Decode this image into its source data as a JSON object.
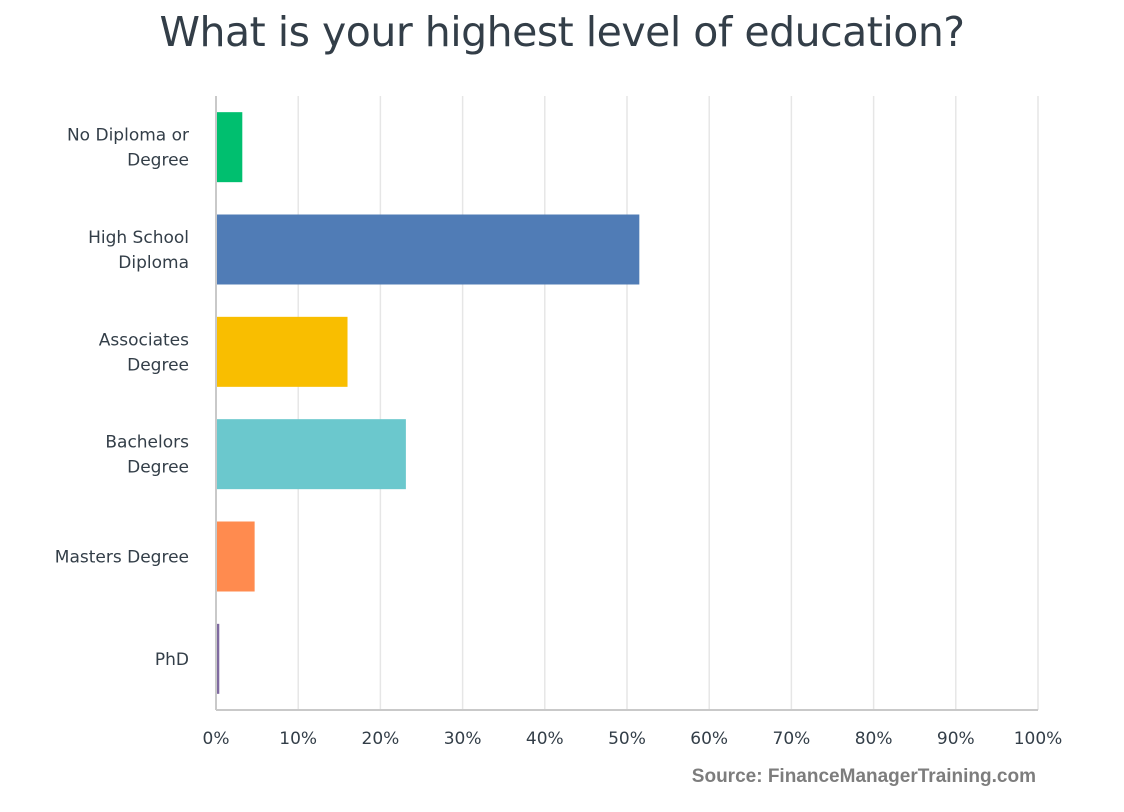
{
  "chart_data": {
    "type": "bar",
    "orientation": "horizontal",
    "title": "What is your highest level of education?",
    "categories": [
      [
        "No Diploma or",
        "Degree"
      ],
      [
        "High School",
        "Diploma"
      ],
      [
        "Associates",
        "Degree"
      ],
      [
        "Bachelors",
        "Degree"
      ],
      [
        "Masters Degree"
      ],
      [
        "PhD"
      ]
    ],
    "values": [
      3.2,
      51.5,
      16.0,
      23.1,
      4.7,
      0.4
    ],
    "colors": [
      "#00bf6f",
      "#507cb6",
      "#f9be00",
      "#6bc8cd",
      "#ff8b4f",
      "#7f6aa0"
    ],
    "xlim": [
      0,
      100
    ],
    "x_ticks": [
      "0%",
      "10%",
      "20%",
      "30%",
      "40%",
      "50%",
      "60%",
      "70%",
      "80%",
      "90%",
      "100%"
    ],
    "grid": true,
    "gridline_color": "#e6e6e6"
  },
  "footer": {
    "source": "Source: FinanceManagerTraining.com"
  }
}
